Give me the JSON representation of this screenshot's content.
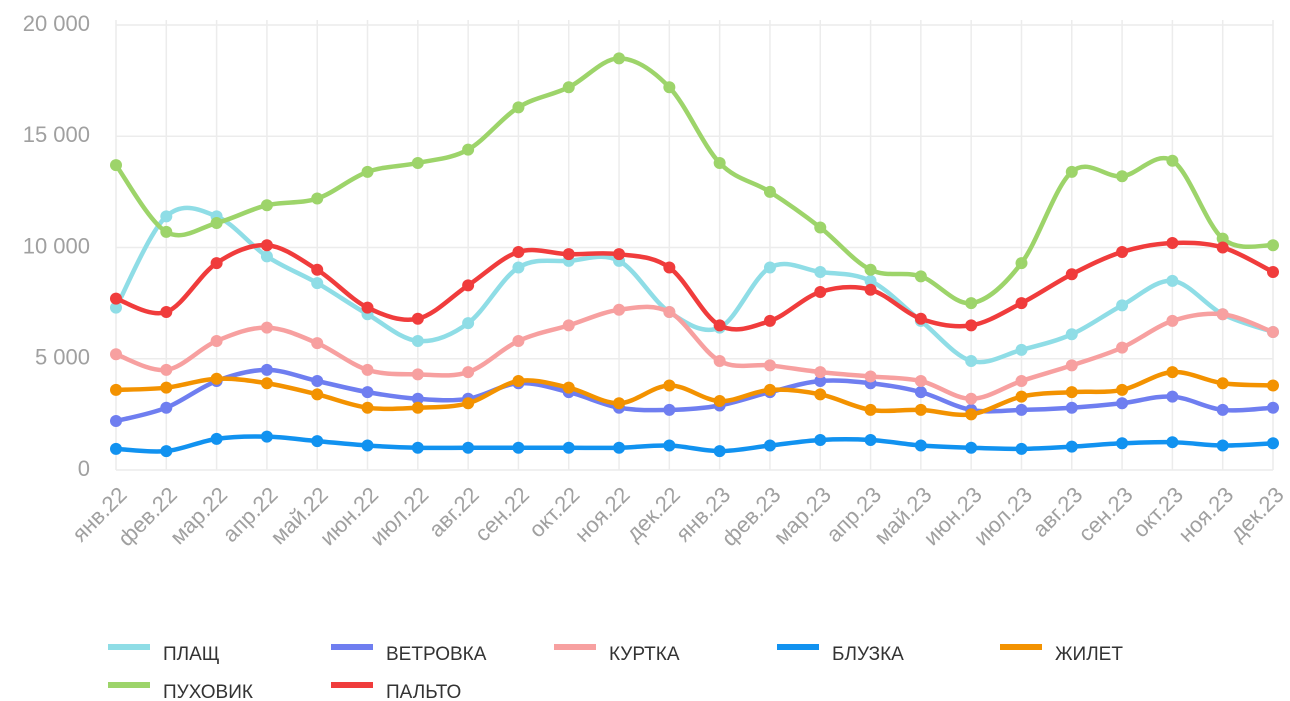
{
  "chart_data": {
    "type": "line",
    "categories": [
      "янв.22",
      "фев.22",
      "мар.22",
      "апр.22",
      "май.22",
      "июн.22",
      "июл.22",
      "авг.22",
      "сен.22",
      "окт.22",
      "ноя.22",
      "дек.22",
      "янв.23",
      "фев.23",
      "мар.23",
      "апр.23",
      "май.23",
      "июн.23",
      "июл.23",
      "авг.23",
      "сен.23",
      "окт.23",
      "ноя.23",
      "дек.23"
    ],
    "series": [
      {
        "name": "ПЛАЩ",
        "color": "#8fdde6",
        "values": [
          7300,
          11400,
          11400,
          9600,
          8400,
          7000,
          5800,
          6600,
          9100,
          9400,
          9400,
          7100,
          6400,
          9100,
          8900,
          8500,
          6700,
          4900,
          5400,
          6100,
          7400,
          8500,
          7000,
          6200
        ]
      },
      {
        "name": "ВЕТРОВКА",
        "color": "#6f7ef0",
        "values": [
          2200,
          2800,
          4000,
          4500,
          4000,
          3500,
          3200,
          3200,
          3900,
          3500,
          2800,
          2700,
          2900,
          3500,
          4000,
          3900,
          3500,
          2700,
          2700,
          2800,
          3000,
          3300,
          2700,
          2800
        ]
      },
      {
        "name": "КУРТКА",
        "color": "#f7a0a0",
        "values": [
          5200,
          4500,
          5800,
          6400,
          5700,
          4500,
          4300,
          4400,
          5800,
          6500,
          7200,
          7100,
          4900,
          4700,
          4400,
          4200,
          4000,
          3200,
          4000,
          4700,
          5500,
          6700,
          7000,
          6200
        ]
      },
      {
        "name": "БЛУЗКА",
        "color": "#1192f0",
        "values": [
          950,
          850,
          1400,
          1500,
          1300,
          1100,
          1000,
          1000,
          1000,
          1000,
          1000,
          1100,
          850,
          1100,
          1350,
          1350,
          1100,
          1000,
          950,
          1050,
          1200,
          1250,
          1100,
          1200
        ]
      },
      {
        "name": "ЖИЛЕТ",
        "color": "#f39200",
        "values": [
          3600,
          3700,
          4100,
          3900,
          3400,
          2800,
          2800,
          3000,
          4000,
          3700,
          3000,
          3800,
          3100,
          3600,
          3400,
          2700,
          2700,
          2500,
          3300,
          3500,
          3600,
          4400,
          3900,
          3800
        ]
      },
      {
        "name": "ПУХОВИК",
        "color": "#9dd46a",
        "values": [
          13700,
          10700,
          11100,
          11900,
          12200,
          13400,
          13800,
          14400,
          16300,
          17200,
          18500,
          17200,
          13800,
          12500,
          10900,
          9000,
          8700,
          7500,
          9300,
          13400,
          13200,
          13900,
          10400,
          10100
        ]
      },
      {
        "name": "ПАЛЬТО",
        "color": "#f03c3c",
        "values": [
          7700,
          7100,
          9300,
          10100,
          9000,
          7300,
          6800,
          8300,
          9800,
          9700,
          9700,
          9100,
          6500,
          6700,
          8000,
          8100,
          6800,
          6500,
          7500,
          8800,
          9800,
          10200,
          10000,
          8900
        ]
      }
    ],
    "ylim": [
      0,
      20000
    ],
    "yticks": [
      0,
      {
        "value": 5000,
        "label": "5 000"
      },
      {
        "value": 10000,
        "label": "10 000"
      },
      {
        "value": 15000,
        "label": "15 000"
      },
      {
        "value": 20000,
        "label": "20 000"
      }
    ],
    "grid": true
  }
}
